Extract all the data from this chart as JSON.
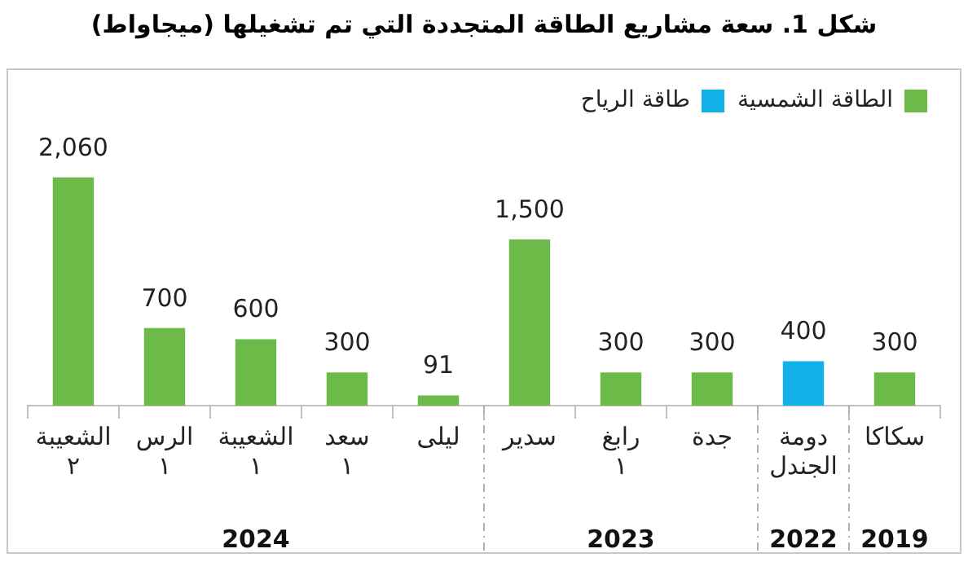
{
  "chart_data": {
    "type": "bar",
    "title": "شكل 1. سعة مشاريع الطاقة المتجددة التي تم تشغيلها (ميجاواط)",
    "categories": [
      "الشعيبة ٢",
      "الرس ١",
      "الشعيبة ١",
      "سعد ١",
      "ليلى",
      "سدير",
      "رابغ ١",
      "جدة",
      "دومة الجندل",
      "سكاكا"
    ],
    "series": [
      {
        "name": "الطاقة الشمسية",
        "color": "#6cbb48",
        "values": [
          2060,
          700,
          600,
          300,
          91,
          1500,
          300,
          300,
          null,
          300
        ],
        "value_labels": [
          "2,060",
          "700",
          "600",
          "300",
          "91",
          "1,500",
          "300",
          "300",
          null,
          "300"
        ]
      },
      {
        "name": "طاقة الرياح",
        "color": "#12b0e8",
        "values": [
          null,
          null,
          null,
          null,
          null,
          null,
          null,
          null,
          400,
          null
        ],
        "value_labels": [
          null,
          null,
          null,
          null,
          null,
          null,
          null,
          null,
          "400",
          null
        ]
      }
    ],
    "stacked": true,
    "legend": "top right",
    "grid": false,
    "annotations": [
      "2024",
      "2023",
      "2022",
      "2019"
    ]
  }
}
